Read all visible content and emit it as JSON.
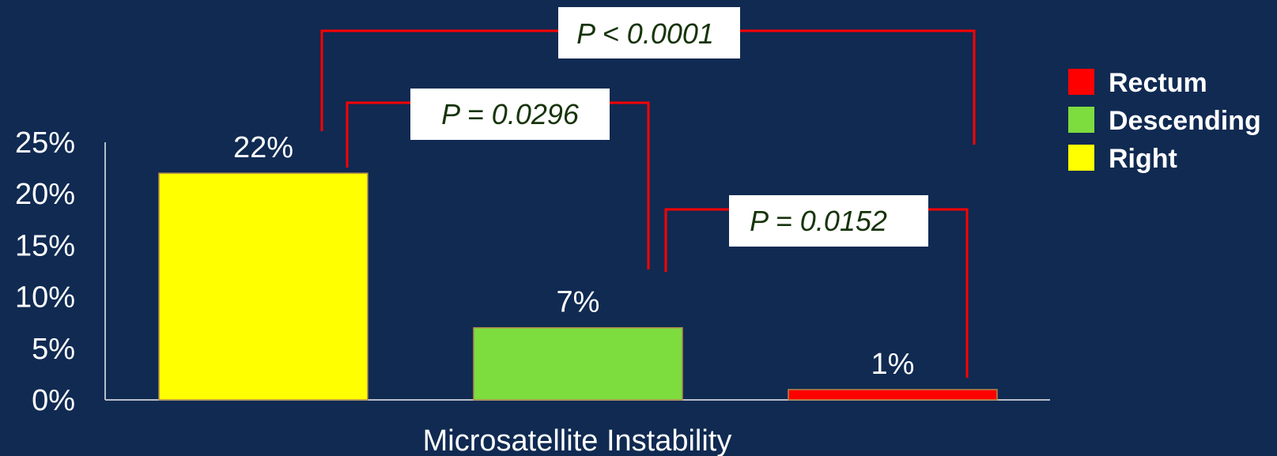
{
  "chart_data": {
    "type": "bar",
    "categories": [
      "Right",
      "Descending",
      "Rectum"
    ],
    "values": [
      22,
      7,
      1
    ],
    "data_labels": [
      "22%",
      "7%",
      "1%"
    ],
    "colors": [
      "#ffff00",
      "#7ddc3e",
      "#ff0000"
    ],
    "title": "",
    "xlabel": "Microsatellite Instability",
    "ylabel": "",
    "ylim": [
      0,
      25
    ],
    "yticks": [
      "0%",
      "5%",
      "10%",
      "15%",
      "20%",
      "25%"
    ],
    "grid": false,
    "legend": {
      "placement": "right",
      "entries": [
        {
          "label": "Rectum",
          "color": "#ff0000"
        },
        {
          "label": "Descending",
          "color": "#7ddc3e"
        },
        {
          "label": "Right",
          "color": "#ffff00"
        }
      ]
    },
    "annotations": [
      {
        "from": "Right",
        "to": "Rectum",
        "label": "P < 0.0001"
      },
      {
        "from": "Right",
        "to": "Descending",
        "label": "P = 0.0296"
      },
      {
        "from": "Descending",
        "to": "Rectum",
        "label": "P = 0.0152"
      }
    ],
    "bracket_color": "#ff0000"
  }
}
